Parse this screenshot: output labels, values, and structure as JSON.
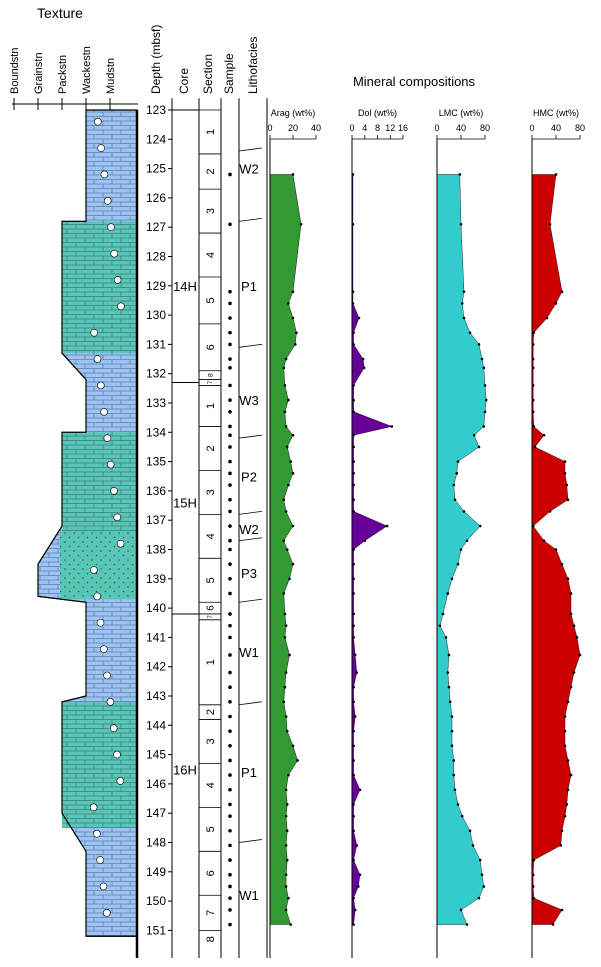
{
  "texture": {
    "title": "Texture",
    "classes": [
      "Boundstn",
      "Grainstn",
      "Packstn",
      "Wackestn",
      "Mudstn"
    ],
    "profile": [
      [
        123,
        "Wackestn"
      ],
      [
        126.8,
        "Wackestn"
      ],
      [
        126.8,
        "Packstn"
      ],
      [
        131.3,
        "Packstn"
      ],
      [
        132.2,
        "Wackestn"
      ],
      [
        134,
        "Wackestn"
      ],
      [
        134,
        "Packstn"
      ],
      [
        137.2,
        "Packstn"
      ],
      [
        138.5,
        "Grainstn"
      ],
      [
        139.6,
        "Grainstn"
      ],
      [
        139.8,
        "Wackestn"
      ],
      [
        143,
        "Wackestn"
      ],
      [
        143.2,
        "Packstn"
      ],
      [
        147,
        "Packstn"
      ],
      [
        148.3,
        "Wackestn"
      ],
      [
        151.2,
        "Wackestn"
      ]
    ]
  },
  "columns": {
    "depth": "Depth (mbsf)",
    "core": "Core",
    "section": "Section",
    "sample": "Sample",
    "lithofacies": "Lithofacies"
  },
  "depth_ticks": [
    123,
    124,
    125,
    126,
    127,
    128,
    129,
    130,
    131,
    132,
    133,
    134,
    135,
    136,
    137,
    138,
    139,
    140,
    141,
    142,
    143,
    144,
    145,
    146,
    147,
    148,
    149,
    150,
    151
  ],
  "cores": [
    {
      "label": "14H",
      "top": 123,
      "bottom": 132.3,
      "label_depth": 129
    },
    {
      "label": "15H",
      "top": 132.3,
      "bottom": 140.2,
      "label_depth": 136.4
    },
    {
      "label": "16H",
      "top": 140.2,
      "bottom": 151.5,
      "label_depth": 145.5
    }
  ],
  "sections": [
    {
      "label": "1",
      "top": 123,
      "bottom": 124.5
    },
    {
      "label": "2",
      "top": 124.5,
      "bottom": 125.7
    },
    {
      "label": "3",
      "top": 125.7,
      "bottom": 127.2
    },
    {
      "label": "4",
      "top": 127.2,
      "bottom": 128.7
    },
    {
      "label": "5",
      "top": 128.7,
      "bottom": 130.3
    },
    {
      "label": "6",
      "top": 130.3,
      "bottom": 131.9
    },
    {
      "label": "8",
      "top": 131.9,
      "bottom": 132.2
    },
    {
      "label": "7",
      "top": 132.2,
      "bottom": 132.4
    },
    {
      "label": "1",
      "top": 132.4,
      "bottom": 133.8
    },
    {
      "label": "2",
      "top": 133.8,
      "bottom": 135.3
    },
    {
      "label": "3",
      "top": 135.3,
      "bottom": 136.8
    },
    {
      "label": "4",
      "top": 136.8,
      "bottom": 138.3
    },
    {
      "label": "5",
      "top": 138.3,
      "bottom": 139.8
    },
    {
      "label": "6",
      "top": 139.8,
      "bottom": 140.2
    },
    {
      "label": "7",
      "top": 140.2,
      "bottom": 140.4
    },
    {
      "label": "1",
      "top": 140.4,
      "bottom": 143.3
    },
    {
      "label": "2",
      "top": 143.3,
      "bottom": 143.8
    },
    {
      "label": "3",
      "top": 143.8,
      "bottom": 145.3
    },
    {
      "label": "4",
      "top": 145.3,
      "bottom": 146.8
    },
    {
      "label": "5",
      "top": 146.8,
      "bottom": 148.3
    },
    {
      "label": "6",
      "top": 148.3,
      "bottom": 149.8
    },
    {
      "label": "7",
      "top": 149.8,
      "bottom": 151
    },
    {
      "label": "8",
      "top": 151,
      "bottom": 151.6
    }
  ],
  "samples": [
    125.2,
    126.9,
    129.2,
    129.6,
    130.1,
    130.6,
    131.0,
    131.5,
    131.8,
    132.4,
    132.9,
    133.3,
    133.8,
    134.1,
    134.5,
    135.0,
    135.4,
    135.8,
    136.3,
    136.7,
    137.2,
    137.7,
    138.0,
    138.5,
    139.0,
    139.5,
    140.2,
    140.6,
    141.0,
    141.6,
    142.2,
    142.7,
    143.2,
    143.7,
    144.2,
    144.7,
    145.2,
    145.7,
    146.2,
    146.7,
    147.1,
    147.6,
    148.1,
    148.6,
    149.1,
    149.5,
    149.9,
    150.3,
    150.8
  ],
  "lithofacies": [
    {
      "label": "W2",
      "top": 124.4,
      "bottom": 126.8,
      "label_depth": 125
    },
    {
      "label": "P1",
      "top": 126.8,
      "bottom": 131.1,
      "label_depth": 129
    },
    {
      "label": "W3",
      "top": 131.1,
      "bottom": 134.2,
      "label_depth": 132.9
    },
    {
      "label": "P2",
      "top": 134.2,
      "bottom": 136.8,
      "label_depth": 135.5
    },
    {
      "label": "W2",
      "top": 136.8,
      "bottom": 137.7,
      "label_depth": 137.3
    },
    {
      "label": "P3",
      "top": 137.7,
      "bottom": 139.8,
      "label_depth": 138.8
    },
    {
      "label": "W1",
      "top": 139.8,
      "bottom": 143.3,
      "label_depth": 141.5
    },
    {
      "label": "P1",
      "top": 143.3,
      "bottom": 148.0,
      "label_depth": 145.6
    },
    {
      "label": "W1",
      "top": 148.0,
      "bottom": 151.5,
      "label_depth": 149.8
    }
  ],
  "chart_data": {
    "type": "area",
    "title": "Mineral compositions",
    "y_axis": "Depth (mbsf)",
    "ylim": [
      122.6,
      151.6
    ],
    "depth": [
      125.2,
      126.9,
      129.2,
      129.6,
      130.1,
      130.6,
      131.0,
      131.5,
      131.8,
      132.4,
      132.9,
      133.3,
      133.8,
      134.1,
      134.5,
      135.0,
      135.4,
      135.8,
      136.3,
      136.7,
      137.2,
      137.7,
      138.0,
      138.5,
      139.0,
      139.5,
      140.2,
      140.6,
      141.0,
      141.6,
      142.2,
      142.7,
      143.2,
      143.7,
      144.2,
      144.7,
      145.2,
      145.7,
      146.2,
      146.7,
      147.1,
      147.6,
      148.1,
      148.6,
      149.1,
      149.5,
      149.9,
      150.3,
      150.8
    ],
    "series": [
      {
        "name": "Arag (wt%)",
        "color": "#339933",
        "xlim": [
          0,
          40
        ],
        "ticks": [
          0,
          20,
          40
        ],
        "tick_labels": [
          "0",
          "20",
          "40"
        ],
        "values": [
          20,
          27,
          20,
          16,
          20,
          23,
          22,
          14,
          12,
          13,
          16,
          13,
          14,
          20,
          15,
          18,
          20,
          16,
          12,
          14,
          20,
          12,
          15,
          20,
          17,
          12,
          13,
          14,
          13,
          17,
          14,
          13,
          12,
          14,
          15,
          20,
          24,
          16,
          14,
          15,
          14,
          15,
          14,
          15,
          14,
          14,
          16,
          14,
          18
        ]
      },
      {
        "name": "Dol (wt%)",
        "color": "#660099",
        "xlim": [
          0,
          16
        ],
        "ticks": [
          0,
          4,
          8,
          12,
          16
        ],
        "tick_labels": [
          "0",
          "4",
          "8",
          "12",
          "16"
        ],
        "values": [
          0.3,
          0.3,
          0.3,
          0.3,
          2.2,
          0.5,
          0.5,
          3.5,
          3.8,
          0.5,
          0.5,
          0.5,
          12.5,
          0.5,
          0.5,
          0.5,
          0.5,
          0.5,
          0.5,
          0.5,
          11.0,
          4.0,
          0.5,
          0.5,
          0.5,
          0.5,
          0.5,
          0.5,
          0.5,
          1.0,
          1.5,
          0.5,
          0.5,
          1.0,
          0.5,
          0.5,
          0.5,
          0.5,
          2.5,
          0.5,
          0.5,
          0.5,
          1.5,
          0.5,
          2.5,
          2.0,
          0.5,
          1.0,
          0.5
        ]
      },
      {
        "name": "LMC (wt%)",
        "color": "#33cccc",
        "xlim": [
          0,
          80
        ],
        "ticks": [
          0,
          40,
          80
        ],
        "tick_labels": [
          "0",
          "40",
          "80"
        ],
        "values": [
          38,
          40,
          45,
          42,
          45,
          55,
          70,
          75,
          78,
          80,
          82,
          80,
          78,
          62,
          70,
          35,
          33,
          28,
          30,
          45,
          72,
          50,
          40,
          35,
          25,
          18,
          10,
          5,
          15,
          20,
          18,
          20,
          22,
          25,
          25,
          25,
          28,
          28,
          30,
          35,
          42,
          55,
          60,
          72,
          75,
          78,
          70,
          40,
          50
        ]
      },
      {
        "name": "HMC (wt%)",
        "color": "#cc0000",
        "xlim": [
          0,
          80
        ],
        "ticks": [
          0,
          40,
          80
        ],
        "tick_labels": [
          "0",
          "40",
          "80"
        ],
        "values": [
          40,
          30,
          50,
          40,
          25,
          3,
          2,
          2,
          2,
          2,
          2,
          2,
          3,
          20,
          5,
          55,
          55,
          58,
          60,
          30,
          2,
          20,
          40,
          50,
          60,
          65,
          65,
          70,
          75,
          80,
          70,
          65,
          60,
          55,
          55,
          55,
          60,
          65,
          60,
          58,
          55,
          50,
          48,
          3,
          2,
          2,
          3,
          50,
          35
        ]
      }
    ]
  }
}
